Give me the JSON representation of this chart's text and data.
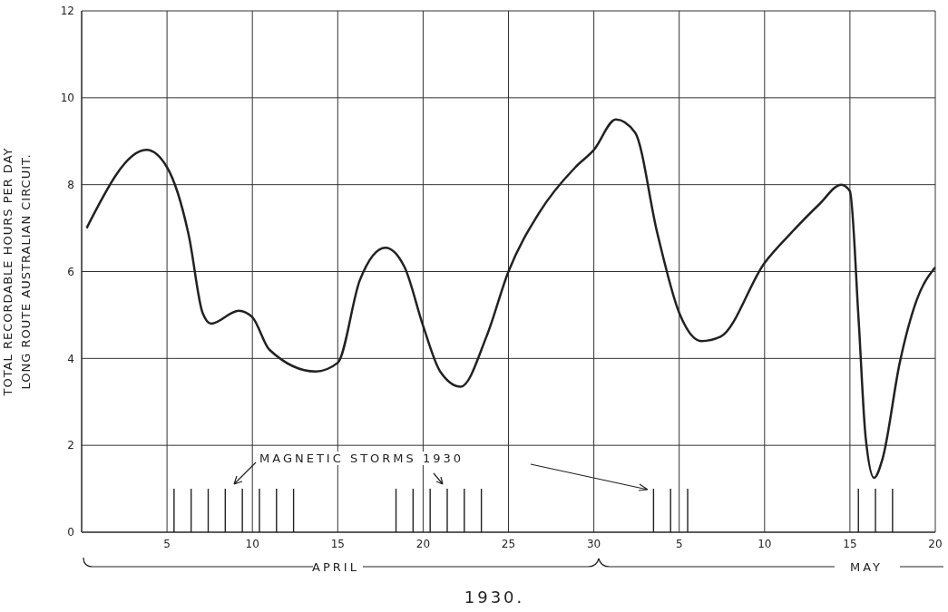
{
  "chart_data": {
    "type": "line",
    "ylabel": "TOTAL RECORDABLE HOURS PER DAY\nLONG ROUTE AUSTRALIAN CIRCUIT.",
    "annotations": [
      "MAGNETIC STORMS 1930",
      "APRIL",
      "MAY",
      "1930."
    ],
    "xlim": [
      "1930-03-31",
      "1930-05-20"
    ],
    "xticks": [
      {
        "value": "1930-04-05",
        "label": "5"
      },
      {
        "value": "1930-04-10",
        "label": "10"
      },
      {
        "value": "1930-04-15",
        "label": "15"
      },
      {
        "value": "1930-04-20",
        "label": "20"
      },
      {
        "value": "1930-04-25",
        "label": "25"
      },
      {
        "value": "1930-04-30",
        "label": "30"
      },
      {
        "value": "1930-05-05",
        "label": "5"
      },
      {
        "value": "1930-05-10",
        "label": "10"
      },
      {
        "value": "1930-05-15",
        "label": "15"
      },
      {
        "value": "1930-05-20",
        "label": "20"
      }
    ],
    "ylim": [
      0,
      12
    ],
    "yticks": [
      0,
      2,
      4,
      6,
      8,
      10,
      12
    ],
    "grid": true,
    "series": [
      {
        "color": "#222222",
        "x": [
          "1930-03-31T07:00",
          "1930-04-03T19:00",
          "1930-04-05",
          "1930-04-06T07:00",
          "1930-04-07T02:00",
          "1930-04-07T14:00",
          "1930-04-09T05:00",
          "1930-04-10",
          "1930-04-11",
          "1930-04-13T17:00",
          "1930-04-15",
          "1930-04-16T07:00",
          "1930-04-17T19:00",
          "1930-04-18T22:00",
          "1930-04-20",
          "1930-04-21",
          "1930-04-22T05:00",
          "1930-04-23T17:00",
          "1930-04-25",
          "1930-04-26T19:00",
          "1930-04-28T22:00",
          "1930-04-30",
          "1930-05-01T07:00",
          "1930-05-02T10:00",
          "1930-05-03T17:00",
          "1930-05-05",
          "1930-05-06T07:00",
          "1930-05-07T10:00",
          "1930-05-10",
          "1930-05-11T14:00",
          "1930-05-13T05:00",
          "1930-05-14T12:00",
          "1930-05-15",
          "1930-05-15T12:00",
          "1930-05-15T22:00",
          "1930-05-16T10:00",
          "1930-05-16T22:00",
          "1930-05-17T22:00",
          "1930-05-18T22:00",
          "1930-05-20"
        ],
        "values": [
          7.0,
          8.8,
          8.4,
          6.8,
          5.05,
          4.8,
          5.1,
          4.95,
          4.2,
          3.7,
          3.9,
          5.8,
          6.55,
          6.1,
          4.75,
          3.7,
          3.35,
          4.5,
          6.0,
          7.35,
          8.4,
          8.8,
          9.5,
          9.2,
          6.9,
          5.05,
          4.4,
          4.5,
          6.2,
          6.9,
          7.55,
          8.0,
          7.85,
          4.95,
          2.2,
          1.25,
          1.7,
          3.9,
          5.35,
          6.1
        ]
      },
      {
        "type": "bar",
        "color": "#222222",
        "x": [
          "1930-04-05T10:00",
          "1930-04-06T10:00",
          "1930-04-07T10:00",
          "1930-04-08T10:00",
          "1930-04-09T10:00",
          "1930-04-10T10:00",
          "1930-04-11T10:00",
          "1930-04-12T10:00",
          "1930-04-18T10:00",
          "1930-04-19T10:00",
          "1930-04-20T10:00",
          "1930-04-21T10:00",
          "1930-04-22T10:00",
          "1930-04-23T10:00",
          "1930-05-03T12:00",
          "1930-05-04T12:00",
          "1930-05-05T12:00",
          "1930-05-15T12:00",
          "1930-05-16T12:00",
          "1930-05-17T12:00"
        ],
        "values": [
          1,
          1,
          1,
          1,
          1,
          1,
          1,
          1,
          1,
          1,
          1,
          1,
          1,
          1,
          1,
          1,
          1,
          1,
          1,
          1
        ]
      }
    ]
  }
}
